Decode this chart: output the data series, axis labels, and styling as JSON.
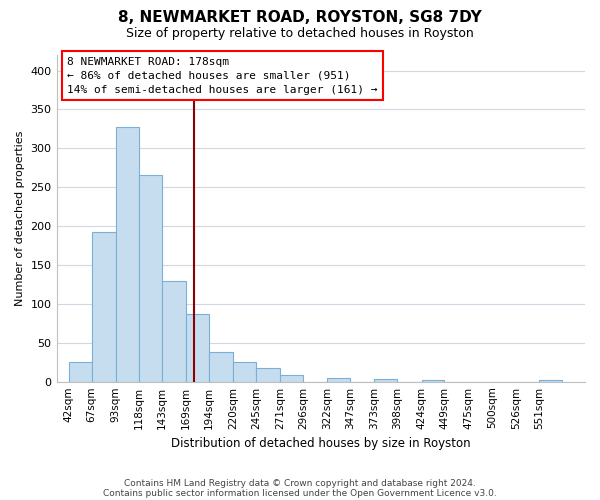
{
  "title": "8, NEWMARKET ROAD, ROYSTON, SG8 7DY",
  "subtitle": "Size of property relative to detached houses in Royston",
  "xlabel": "Distribution of detached houses by size in Royston",
  "ylabel": "Number of detached properties",
  "bar_labels": [
    "42sqm",
    "67sqm",
    "93sqm",
    "118sqm",
    "143sqm",
    "169sqm",
    "194sqm",
    "220sqm",
    "245sqm",
    "271sqm",
    "296sqm",
    "322sqm",
    "347sqm",
    "373sqm",
    "398sqm",
    "424sqm",
    "449sqm",
    "475sqm",
    "500sqm",
    "526sqm",
    "551sqm"
  ],
  "bar_heights": [
    25,
    193,
    328,
    266,
    130,
    87,
    38,
    25,
    17,
    8,
    0,
    5,
    0,
    3,
    0,
    2,
    0,
    0,
    0,
    0,
    2
  ],
  "bar_color": "#c6ddf0",
  "bar_edge_color": "#7ab0d4",
  "property_sqm": 178,
  "bin_edges": [
    42,
    67,
    93,
    118,
    143,
    169,
    194,
    220,
    245,
    271,
    296,
    322,
    347,
    373,
    398,
    424,
    449,
    475,
    500,
    526,
    551,
    576
  ],
  "annotation_title": "8 NEWMARKET ROAD: 178sqm",
  "annotation_line1": "← 86% of detached houses are smaller (951)",
  "annotation_line2": "14% of semi-detached houses are larger (161) →",
  "ylim": [
    0,
    420
  ],
  "yticks": [
    0,
    50,
    100,
    150,
    200,
    250,
    300,
    350,
    400
  ],
  "footnote1": "Contains HM Land Registry data © Crown copyright and database right 2024.",
  "footnote2": "Contains public sector information licensed under the Open Government Licence v3.0.",
  "background_color": "#ffffff",
  "grid_color": "#d0d8e4"
}
